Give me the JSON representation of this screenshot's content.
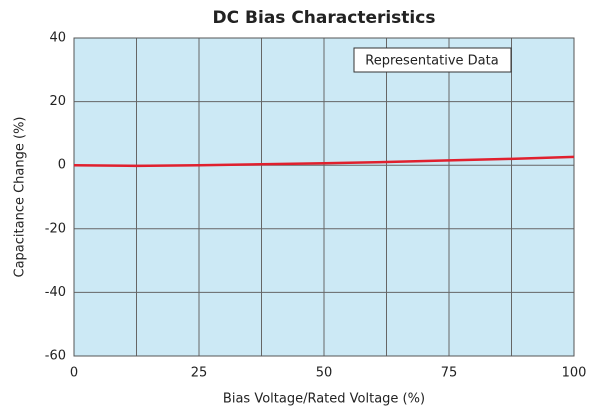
{
  "chart_data": {
    "type": "line",
    "title": "DC Bias Characteristics",
    "xlabel": "Bias Voltage/Rated Voltage (%)",
    "ylabel": "Capacitance Change (%)",
    "annotation": "Representative Data",
    "x": [
      0,
      12.5,
      25,
      37.5,
      50,
      62.5,
      75,
      87.5,
      100
    ],
    "series": [
      {
        "name": "Capacitance Change",
        "color": "#e0202e",
        "values": [
          0,
          -0.2,
          0,
          0.3,
          0.6,
          1,
          1.5,
          2,
          2.6
        ]
      }
    ],
    "xlim": [
      0,
      100
    ],
    "xticks": [
      0,
      25,
      50,
      75,
      100
    ],
    "ylim": [
      -60,
      40
    ],
    "yticks": [
      -60,
      -40,
      -20,
      0,
      20,
      40
    ],
    "grid": true,
    "background": "#cce9f5"
  }
}
